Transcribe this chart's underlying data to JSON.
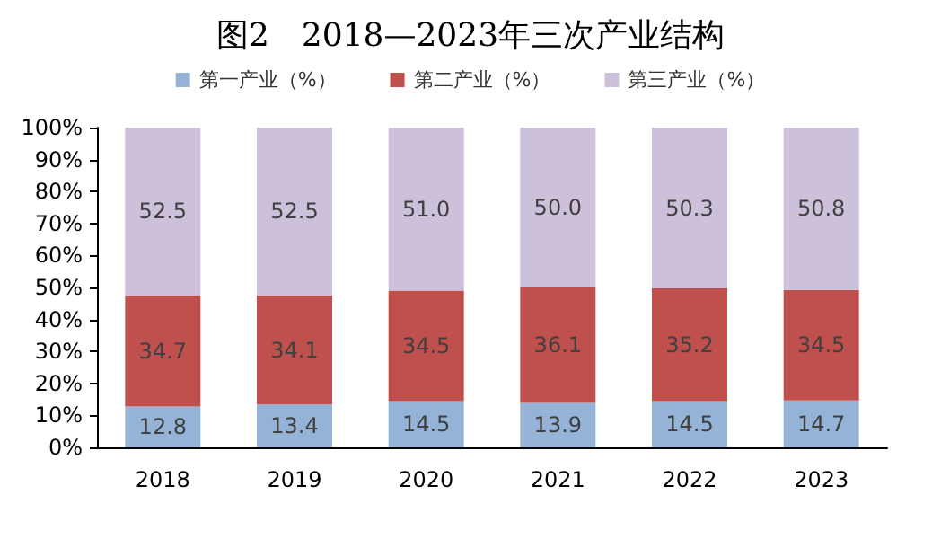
{
  "chart_data": {
    "type": "bar",
    "title": "图2　2018—2023年三次产业结构",
    "stacked": true,
    "grid": false,
    "legend": "top",
    "categories": [
      "2018",
      "2019",
      "2020",
      "2021",
      "2022",
      "2023"
    ],
    "series": [
      {
        "name": "第一产业（%）",
        "color": "#95b3d7",
        "values": [
          12.8,
          13.4,
          14.5,
          13.9,
          14.5,
          14.7
        ],
        "value_labels": [
          "12.8",
          "13.4",
          "14.5",
          "13.9",
          "14.5",
          "14.7"
        ]
      },
      {
        "name": "第二产业（%）",
        "color": "#c0504d",
        "values": [
          34.7,
          34.1,
          34.5,
          36.1,
          35.2,
          34.5
        ],
        "value_labels": [
          "34.7",
          "34.1",
          "34.5",
          "36.1",
          "35.2",
          "34.5"
        ]
      },
      {
        "name": "第三产业（%）",
        "color": "#ccc0da",
        "values": [
          52.5,
          52.5,
          51.0,
          50.0,
          50.3,
          50.8
        ],
        "value_labels": [
          "52.5",
          "52.5",
          "51.0",
          "50.0",
          "50.3",
          "50.8"
        ]
      }
    ],
    "ylim": [
      0,
      100
    ],
    "yticks": [
      {
        "value": 0,
        "label": "0%"
      },
      {
        "value": 10,
        "label": "10%"
      },
      {
        "value": 20,
        "label": "20%"
      },
      {
        "value": 30,
        "label": "30%"
      },
      {
        "value": 40,
        "label": "40%"
      },
      {
        "value": 50,
        "label": "50%"
      },
      {
        "value": 60,
        "label": "60%"
      },
      {
        "value": 70,
        "label": "70%"
      },
      {
        "value": 80,
        "label": "80%"
      },
      {
        "value": 90,
        "label": "90%"
      },
      {
        "value": 100,
        "label": "100%"
      }
    ]
  }
}
